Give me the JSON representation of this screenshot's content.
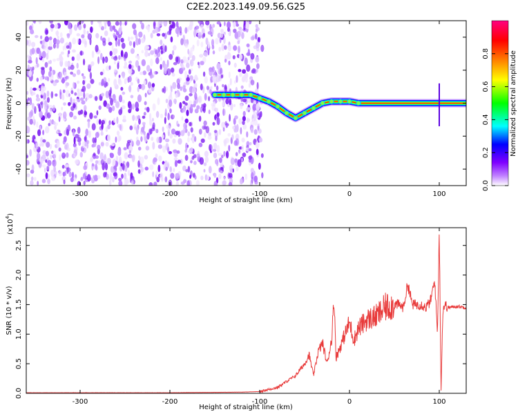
{
  "title": "C2E2.2023.149.09.56.G25",
  "chart_data": [
    {
      "type": "heatmap",
      "title": "C2E2.2023.149.09.56.G25",
      "xlabel": "Height of straight line (km)",
      "ylabel": "Frequency (Hz)",
      "xlim": [
        -360,
        130
      ],
      "ylim": [
        -50,
        50
      ],
      "x_ticks": [
        -300,
        -200,
        -100,
        0,
        100
      ],
      "y_ticks": [
        -40,
        -20,
        0,
        20,
        40
      ],
      "noise_region_x": [
        -360,
        -100
      ],
      "ridge": {
        "x": [
          -150,
          -140,
          -130,
          -120,
          -110,
          -100,
          -90,
          -80,
          -70,
          -60,
          -50,
          -40,
          -30,
          -20,
          -10,
          0,
          10,
          50,
          85,
          100,
          130
        ],
        "y": [
          5,
          5,
          5,
          5,
          5,
          3,
          1,
          -2,
          -6,
          -9,
          -6,
          -3,
          0,
          1,
          1,
          1,
          0,
          0,
          0,
          0,
          0
        ]
      },
      "colorbar": {
        "label": "Normalized spectral amplitude",
        "range": [
          0,
          1
        ],
        "ticks": [
          0.0,
          0.2,
          0.4,
          0.6,
          0.8
        ],
        "colors": [
          "#ffffff",
          "#7f00ff",
          "#0000ff",
          "#00ffff",
          "#00ff00",
          "#ffff00",
          "#ff8000",
          "#ff0000",
          "#ff0080"
        ]
      }
    },
    {
      "type": "line",
      "xlabel": "Height of straight line (km)",
      "ylabel": "SNR (10 * v/v)",
      "y_multiplier": "(x10",
      "y_multiplier_exp": "4",
      "y_multiplier_close": ")",
      "xlim": [
        -360,
        130
      ],
      "ylim": [
        0,
        2.8
      ],
      "x_ticks": [
        -300,
        -200,
        -100,
        0,
        100
      ],
      "y_ticks": [
        0.0,
        0.5,
        1.0,
        1.5,
        2.0,
        2.5
      ],
      "color": "#e83a3a",
      "series": [
        {
          "x": [
            -360,
            -200,
            -120,
            -100,
            -80,
            -70,
            -60,
            -50,
            -45,
            -40,
            -35,
            -30,
            -25,
            -20,
            -17,
            -15,
            -10,
            -5,
            0,
            5,
            10,
            20,
            30,
            40,
            50,
            55,
            60,
            65,
            70,
            80,
            85,
            90,
            95,
            98,
            100,
            102,
            104,
            106,
            110,
            120,
            130
          ],
          "y": [
            0.01,
            0.01,
            0.02,
            0.03,
            0.1,
            0.2,
            0.3,
            0.5,
            0.65,
            0.3,
            0.7,
            0.85,
            0.5,
            0.9,
            1.6,
            0.6,
            0.8,
            1.0,
            1.2,
            0.9,
            1.1,
            1.25,
            1.3,
            1.45,
            1.5,
            1.5,
            1.45,
            1.85,
            1.5,
            1.5,
            1.45,
            1.55,
            1.9,
            1.0,
            2.78,
            0.05,
            1.4,
            1.5,
            1.45,
            1.47,
            1.45
          ]
        }
      ]
    }
  ]
}
